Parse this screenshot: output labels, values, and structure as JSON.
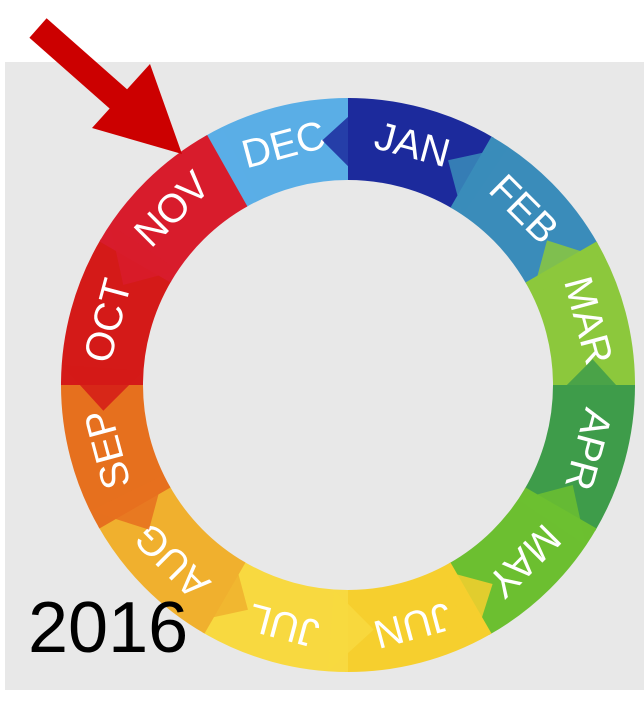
{
  "months": [
    {
      "label": "DEC",
      "color": "#5aaee6"
    },
    {
      "label": "JAN",
      "color": "#1c2a9c"
    },
    {
      "label": "FEB",
      "color": "#3a8cba"
    },
    {
      "label": "MAR",
      "color": "#8cc83c"
    },
    {
      "label": "APR",
      "color": "#3e9c4a"
    },
    {
      "label": "MAY",
      "color": "#6cbf30"
    },
    {
      "label": "JUN",
      "color": "#f6cf2e"
    },
    {
      "label": "JUL",
      "color": "#f8d940"
    },
    {
      "label": "AUG",
      "color": "#f0b02e"
    },
    {
      "label": "SEP",
      "color": "#e6701e"
    },
    {
      "label": "OCT",
      "color": "#d41a18"
    },
    {
      "label": "NOV",
      "color": "#d81c2c"
    }
  ],
  "year": "2016"
}
